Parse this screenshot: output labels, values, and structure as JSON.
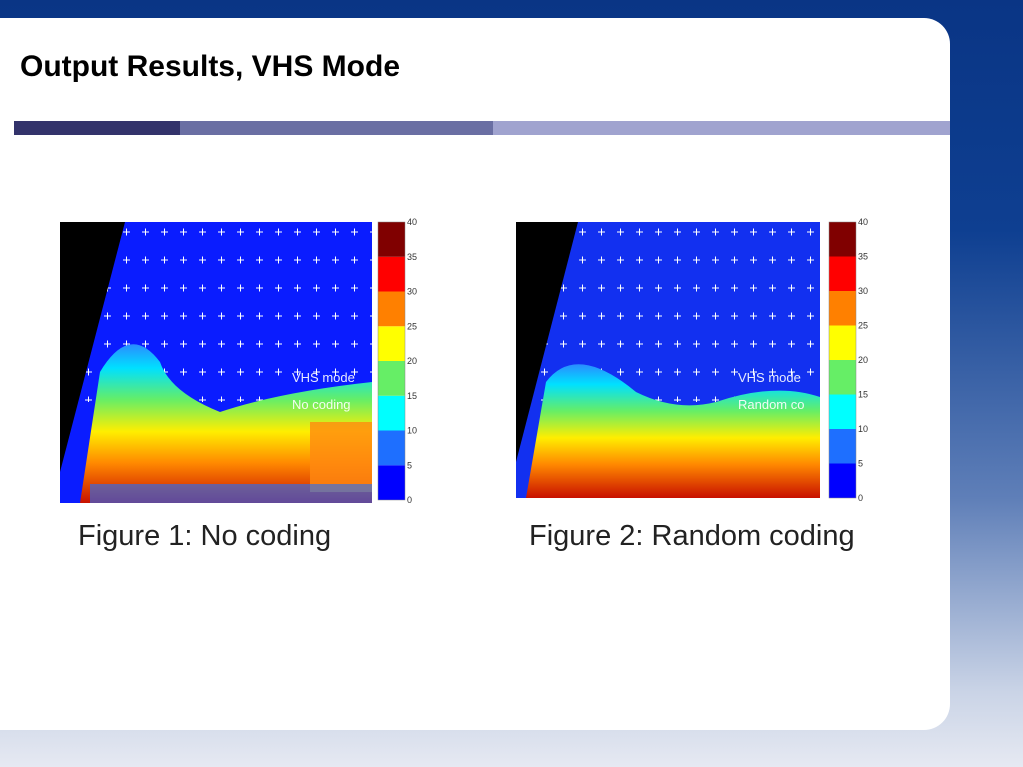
{
  "header": {
    "title": "Output Results, VHS Mode"
  },
  "figures": [
    {
      "overlay": [
        "VHS mode",
        "No coding"
      ],
      "caption": "Figure 1: No coding",
      "colorbar_ticks": [
        0,
        5,
        10,
        15,
        20,
        25,
        30,
        35,
        40
      ]
    },
    {
      "overlay": [
        "VHS mode",
        "Random co"
      ],
      "caption": "Figure 2: Random coding",
      "colorbar_ticks": [
        0,
        5,
        10,
        15,
        20,
        25,
        30,
        35,
        40
      ]
    }
  ]
}
